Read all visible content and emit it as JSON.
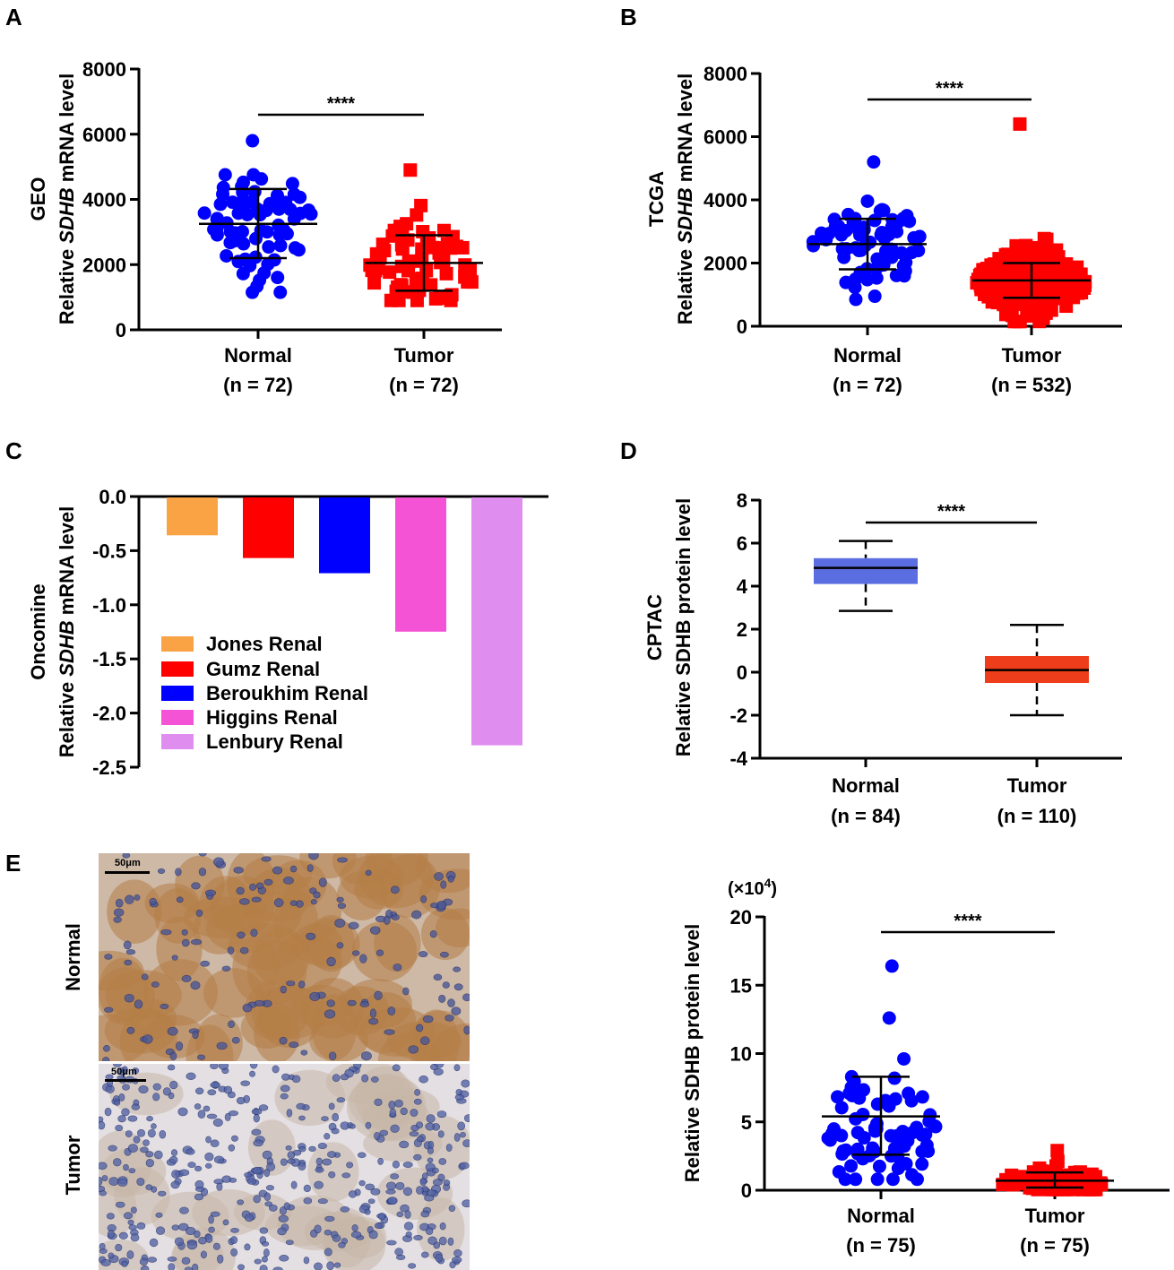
{
  "panels": {
    "A": "A",
    "B": "B",
    "C": "C",
    "D": "D",
    "E": "E"
  },
  "chart_data": [
    {
      "id": "A",
      "type": "scatter",
      "ylabel_line1": "GEO",
      "ylabel_pre": "Relative ",
      "ylabel_italic": "SDHB",
      "ylabel_post": " mRNA level",
      "ylim": [
        0,
        8000
      ],
      "yticks": [
        "0",
        "2000",
        "4000",
        "6000",
        "8000"
      ],
      "ytick_values": [
        0,
        2000,
        4000,
        6000,
        8000
      ],
      "groups": [
        {
          "name": "Normal",
          "n_label": "(n = 72)",
          "color": "#0000ff",
          "marker": "circle",
          "mean": 3250,
          "sd_low": 2200,
          "sd_high": 4320,
          "n": 72,
          "min": 1150,
          "max": 5800,
          "median": 3300
        },
        {
          "name": "Tumor",
          "n_label": "(n = 72)",
          "color": "#ff0000",
          "marker": "square",
          "mean": 2050,
          "sd_low": 1200,
          "sd_high": 2900,
          "n": 72,
          "min": 900,
          "max": 4900,
          "median": 1900
        }
      ],
      "significance": "****"
    },
    {
      "id": "B",
      "type": "scatter",
      "ylabel_line1": "TCGA",
      "ylabel_pre": "Relative ",
      "ylabel_italic": "SDHB",
      "ylabel_post": " mRNA level",
      "ylim": [
        0,
        8000
      ],
      "yticks": [
        "0",
        "2000",
        "4000",
        "6000",
        "8000"
      ],
      "ytick_values": [
        0,
        2000,
        4000,
        6000,
        8000
      ],
      "groups": [
        {
          "name": "Normal",
          "n_label": "(n = 72)",
          "color": "#0000ff",
          "marker": "circle",
          "mean": 2600,
          "sd_low": 1800,
          "sd_high": 3400,
          "n": 72,
          "min": 850,
          "max": 5200,
          "median": 2600
        },
        {
          "name": "Tumor",
          "n_label": "(n = 532)",
          "color": "#ff0000",
          "marker": "square",
          "mean": 1450,
          "sd_low": 900,
          "sd_high": 2000,
          "n": 532,
          "min": 150,
          "max": 6400,
          "median": 1400
        }
      ],
      "significance": "****"
    },
    {
      "id": "C",
      "type": "bar",
      "ylabel_line1": "Oncomine",
      "ylabel_pre": "Relative ",
      "ylabel_italic": "SDHB",
      "ylabel_post": " mRNA level",
      "ylim": [
        -2.5,
        0.0
      ],
      "yticks": [
        "0.0",
        "-0.5",
        "-1.0",
        "-1.5",
        "-2.0",
        "-2.5"
      ],
      "ytick_values": [
        0.0,
        -0.5,
        -1.0,
        -1.5,
        -2.0,
        -2.5
      ],
      "categories": [
        "Jones Renal",
        "Gumz Renal",
        "Beroukhim Renal",
        "Higgins Renal",
        "Lenbury Renal"
      ],
      "values": [
        -0.35,
        -0.56,
        -0.7,
        -1.24,
        -2.29
      ],
      "colors": [
        "#f9a345",
        "#ff0000",
        "#0000ff",
        "#f553d6",
        "#df8ef0"
      ],
      "legend_position": "bottom-left"
    },
    {
      "id": "D",
      "type": "box",
      "ylabel_line1": "CPTAC",
      "ylabel_line2": "Relative SDHB protein level",
      "ylim": [
        -4,
        8
      ],
      "yticks": [
        "-4",
        "-2",
        "0",
        "2",
        "4",
        "6",
        "8"
      ],
      "ytick_values": [
        -4,
        -2,
        0,
        2,
        4,
        6,
        8
      ],
      "groups": [
        {
          "name": "Normal",
          "n_label": "(n = 84)",
          "color": "#5b6ee1",
          "whisker_low": 2.85,
          "q1": 4.1,
          "median": 4.85,
          "q3": 5.3,
          "whisker_high": 6.1
        },
        {
          "name": "Tumor",
          "n_label": "(n = 110)",
          "color": "#ee3d1a",
          "whisker_low": -2.0,
          "q1": -0.5,
          "median": 0.1,
          "q3": 0.75,
          "whisker_high": 2.2
        }
      ],
      "significance": "****"
    },
    {
      "id": "E",
      "type": "scatter",
      "multiplier": "(×10",
      "multiplier_exp": "4",
      "multiplier_close": ")",
      "ylabel_line2": "Relative SDHB protein level",
      "ylim": [
        0,
        20
      ],
      "yticks": [
        "0",
        "5",
        "10",
        "15",
        "20"
      ],
      "ytick_values": [
        0,
        5,
        10,
        15,
        20
      ],
      "groups": [
        {
          "name": "Normal",
          "n_label": "(n = 75)",
          "color": "#0000ff",
          "marker": "circle",
          "mean": 5.4,
          "sd_low": 2.6,
          "sd_high": 8.3,
          "n": 75,
          "min": 0.8,
          "max": 16.4,
          "median": 4.2
        },
        {
          "name": "Tumor",
          "n_label": "(n = 75)",
          "color": "#ff0000",
          "marker": "square",
          "mean": 0.7,
          "sd_low": 0.2,
          "sd_high": 1.3,
          "n": 75,
          "min": 0.05,
          "max": 2.9,
          "median": 0.6
        }
      ],
      "significance": "****"
    }
  ],
  "ihc": {
    "row_labels": [
      "Normal",
      "Tumor"
    ],
    "scale_label": "50μm"
  }
}
